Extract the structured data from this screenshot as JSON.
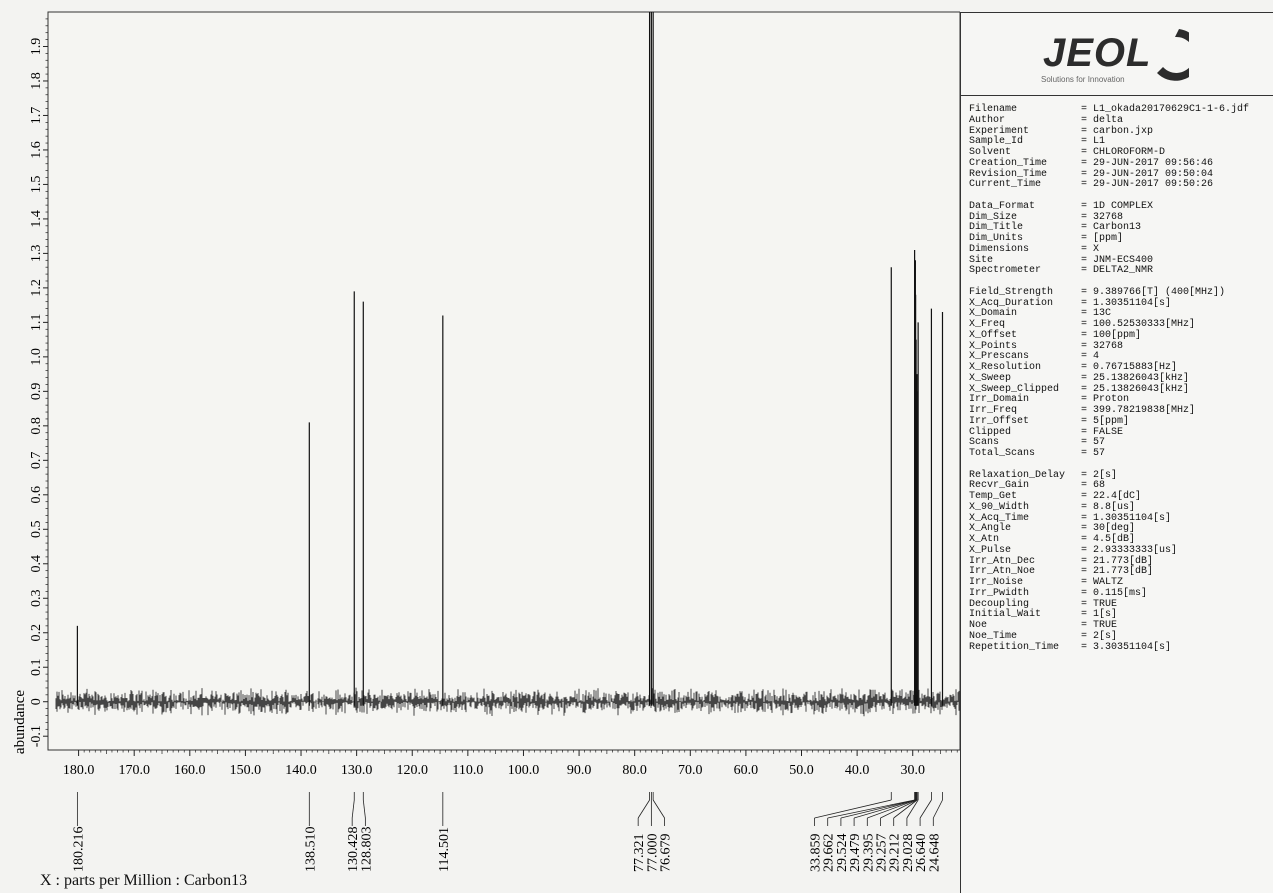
{
  "chart_data": {
    "type": "line",
    "xlabel": "X : parts per Million : Carbon13",
    "ylabel": "abundance",
    "xlim": [
      185.5,
      21.5
    ],
    "ylim": [
      -0.14,
      2.0
    ],
    "x_ticks": [
      "180.0",
      "170.0",
      "160.0",
      "150.0",
      "140.0",
      "130.0",
      "120.0",
      "110.0",
      "100.0",
      "90.0",
      "80.0",
      "70.0",
      "60.0",
      "50.0",
      "40.0",
      "30.0"
    ],
    "y_ticks": [
      "-0.1",
      "0",
      "0.1",
      "0.2",
      "0.3",
      "0.4",
      "0.5",
      "0.6",
      "0.7",
      "0.8",
      "0.9",
      "1.0",
      "1.1",
      "1.2",
      "1.3",
      "1.4",
      "1.5",
      "1.6",
      "1.7",
      "1.8",
      "1.9"
    ],
    "peaks": [
      {
        "x": 180.216,
        "y": 0.22
      },
      {
        "x": 138.51,
        "y": 0.81
      },
      {
        "x": 130.428,
        "y": 1.19
      },
      {
        "x": 128.803,
        "y": 1.16
      },
      {
        "x": 114.501,
        "y": 1.12
      },
      {
        "x": 77.321,
        "y": 2.0
      },
      {
        "x": 77.0,
        "y": 2.0
      },
      {
        "x": 76.679,
        "y": 2.0
      },
      {
        "x": 33.859,
        "y": 1.26
      },
      {
        "x": 29.662,
        "y": 1.31
      },
      {
        "x": 29.524,
        "y": 1.28
      },
      {
        "x": 29.479,
        "y": 1.18
      },
      {
        "x": 29.395,
        "y": 1.05
      },
      {
        "x": 29.257,
        "y": 0.95
      },
      {
        "x": 29.212,
        "y": 0.9
      },
      {
        "x": 29.028,
        "y": 1.1
      },
      {
        "x": 26.64,
        "y": 1.14
      },
      {
        "x": 24.648,
        "y": 1.13
      }
    ],
    "peak_labels": [
      "180.216",
      "138.510",
      "130.428",
      "128.803",
      "114.501",
      "77.321",
      "77.000",
      "76.679",
      "33.859",
      "29.662",
      "29.524",
      "29.479",
      "29.395",
      "29.257",
      "29.212",
      "29.028",
      "26.640",
      "24.648"
    ]
  },
  "logo": {
    "brand": "JEOL",
    "tagline": "Solutions for Innovation"
  },
  "params": [
    [
      [
        "Filename",
        "= L1_okada20170629C1-1-6.jdf"
      ],
      [
        "Author",
        "= delta"
      ],
      [
        "Experiment",
        "= carbon.jxp"
      ],
      [
        "Sample_Id",
        "= L1"
      ],
      [
        "Solvent",
        "= CHLOROFORM-D"
      ],
      [
        "Creation_Time",
        "= 29-JUN-2017 09:56:46"
      ],
      [
        "Revision_Time",
        "= 29-JUN-2017 09:50:04"
      ],
      [
        "Current_Time",
        "= 29-JUN-2017 09:50:26"
      ]
    ],
    [
      [
        "Data_Format",
        "= 1D COMPLEX"
      ],
      [
        "Dim_Size",
        "= 32768"
      ],
      [
        "Dim_Title",
        "= Carbon13"
      ],
      [
        "Dim_Units",
        "= [ppm]"
      ],
      [
        "Dimensions",
        "= X"
      ],
      [
        "Site",
        "= JNM-ECS400"
      ],
      [
        "Spectrometer",
        "= DELTA2_NMR"
      ]
    ],
    [
      [
        "Field_Strength",
        "= 9.389766[T] (400[MHz])"
      ],
      [
        "X_Acq_Duration",
        "= 1.30351104[s]"
      ],
      [
        "X_Domain",
        "= 13C"
      ],
      [
        "X_Freq",
        "= 100.52530333[MHz]"
      ],
      [
        "X_Offset",
        "= 100[ppm]"
      ],
      [
        "X_Points",
        "= 32768"
      ],
      [
        "X_Prescans",
        "= 4"
      ],
      [
        "X_Resolution",
        "= 0.76715883[Hz]"
      ],
      [
        "X_Sweep",
        "= 25.13826043[kHz]"
      ],
      [
        "X_Sweep_Clipped",
        "= 25.13826043[kHz]"
      ],
      [
        "Irr_Domain",
        "= Proton"
      ],
      [
        "Irr_Freq",
        "= 399.78219838[MHz]"
      ],
      [
        "Irr_Offset",
        "= 5[ppm]"
      ],
      [
        "Clipped",
        "= FALSE"
      ],
      [
        "Scans",
        "= 57"
      ],
      [
        "Total_Scans",
        "= 57"
      ]
    ],
    [
      [
        "Relaxation_Delay",
        "= 2[s]"
      ],
      [
        "Recvr_Gain",
        "= 68"
      ],
      [
        "Temp_Get",
        "= 22.4[dC]"
      ],
      [
        "X_90_Width",
        "= 8.8[us]"
      ],
      [
        "X_Acq_Time",
        "= 1.30351104[s]"
      ],
      [
        "X_Angle",
        "= 30[deg]"
      ],
      [
        "X_Atn",
        "= 4.5[dB]"
      ],
      [
        "X_Pulse",
        "= 2.93333333[us]"
      ],
      [
        "Irr_Atn_Dec",
        "= 21.773[dB]"
      ],
      [
        "Irr_Atn_Noe",
        "= 21.773[dB]"
      ],
      [
        "Irr_Noise",
        "= WALTZ"
      ],
      [
        "Irr_Pwidth",
        "= 0.115[ms]"
      ],
      [
        "Decoupling",
        "= TRUE"
      ],
      [
        "Initial_Wait",
        "= 1[s]"
      ],
      [
        "Noe",
        "= TRUE"
      ],
      [
        "Noe_Time",
        "= 2[s]"
      ],
      [
        "Repetition_Time",
        "= 3.30351104[s]"
      ]
    ]
  ]
}
